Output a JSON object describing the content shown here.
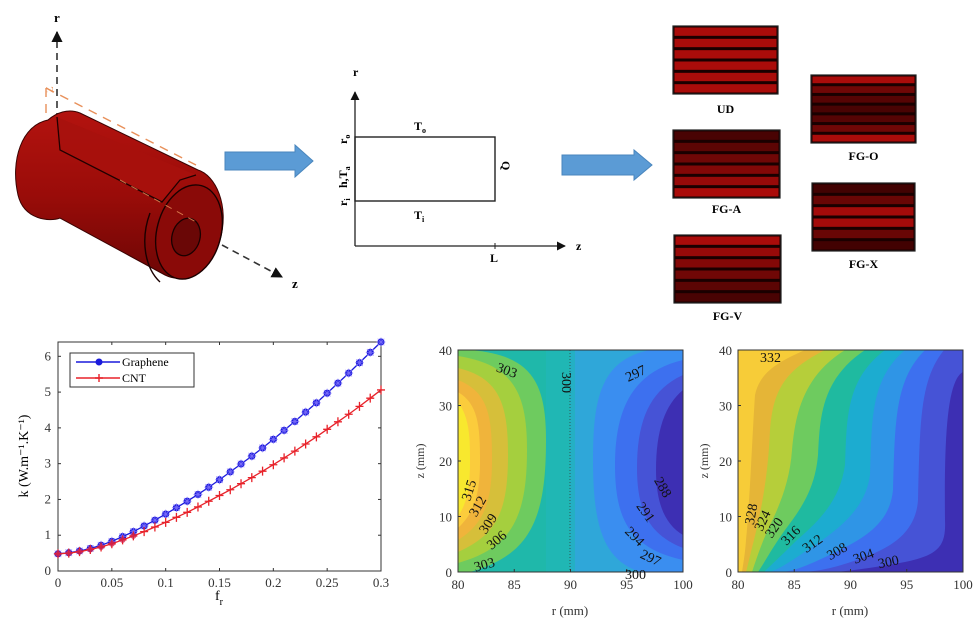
{
  "schematic_3d": {
    "axis_r_label": "r",
    "axis_z_label": "z",
    "section_label": "Z",
    "body_color": "#9b0d0a"
  },
  "schematic_2d": {
    "axis_r_label": "r",
    "axis_z_label": "z",
    "top_label": "T",
    "top_sub": "o",
    "bottom_label": "T",
    "bottom_sub": "i",
    "right_label": "Q",
    "left_outer": "r",
    "left_outer_sub": "o",
    "left_mid": "h,T",
    "left_mid_sub": "a",
    "left_inner": "r",
    "left_inner_sub": "i",
    "length_label": "L"
  },
  "arrows": {
    "color": "#5b9bd5"
  },
  "distributions": [
    {
      "label": "UD",
      "pattern": [
        1,
        1,
        1,
        1,
        1,
        1
      ]
    },
    {
      "label": "FG-O",
      "pattern": [
        1,
        0.55,
        0.35,
        0.25,
        0.35,
        0.55,
        1
      ]
    },
    {
      "label": "FG-A",
      "pattern": [
        0.25,
        0.4,
        0.55,
        0.7,
        0.85,
        1
      ]
    },
    {
      "label": "FG-X",
      "pattern": [
        0.2,
        0.5,
        0.95,
        0.95,
        0.5,
        0.2
      ]
    },
    {
      "label": "FG-V",
      "pattern": [
        1,
        0.85,
        0.7,
        0.55,
        0.4,
        0.25
      ]
    }
  ],
  "chart_data": [
    {
      "type": "line",
      "title": "",
      "xlabel": "f",
      "xlabel_sub": "r",
      "ylabel": "k (W.m⁻¹.K⁻¹)",
      "xlim": [
        0,
        0.3
      ],
      "ylim": [
        0,
        6.4
      ],
      "xticks": [
        "0",
        "0.05",
        "0.1",
        "0.15",
        "0.2",
        "0.25",
        "0.3"
      ],
      "yticks": [
        "0",
        "1",
        "2",
        "3",
        "4",
        "5",
        "6"
      ],
      "legend": "top-left",
      "x": [
        0,
        0.01,
        0.02,
        0.03,
        0.04,
        0.05,
        0.06,
        0.07,
        0.08,
        0.09,
        0.1,
        0.11,
        0.12,
        0.13,
        0.14,
        0.15,
        0.16,
        0.17,
        0.18,
        0.19,
        0.2,
        0.21,
        0.22,
        0.23,
        0.24,
        0.25,
        0.26,
        0.27,
        0.28,
        0.29,
        0.3
      ],
      "series": [
        {
          "name": "Graphene",
          "color": "#1a1adb",
          "marker": "circle-star",
          "values": [
            0.48,
            0.51,
            0.56,
            0.63,
            0.72,
            0.83,
            0.96,
            1.1,
            1.26,
            1.42,
            1.59,
            1.77,
            1.95,
            2.14,
            2.34,
            2.55,
            2.77,
            2.99,
            3.21,
            3.44,
            3.68,
            3.93,
            4.18,
            4.44,
            4.7,
            4.97,
            5.25,
            5.53,
            5.82,
            6.11,
            6.4
          ]
        },
        {
          "name": "CNT",
          "color": "#e8222a",
          "marker": "plus",
          "values": [
            0.48,
            0.5,
            0.54,
            0.6,
            0.67,
            0.76,
            0.87,
            0.98,
            1.1,
            1.23,
            1.36,
            1.5,
            1.64,
            1.79,
            1.95,
            2.11,
            2.27,
            2.44,
            2.61,
            2.79,
            2.97,
            3.16,
            3.35,
            3.55,
            3.75,
            3.96,
            4.17,
            4.38,
            4.6,
            4.83,
            5.06
          ]
        }
      ]
    },
    {
      "type": "heatmap",
      "subtype": "filled-contour",
      "xlabel": "r (mm)",
      "ylabel": "z (mm)",
      "xlim": [
        80,
        100
      ],
      "ylim": [
        0,
        40
      ],
      "xticks": [
        "80",
        "85",
        "90",
        "95",
        "100"
      ],
      "yticks": [
        "0",
        "10",
        "20",
        "30",
        "40"
      ],
      "contour_levels": [
        288,
        291,
        294,
        297,
        300,
        303,
        306,
        309,
        312,
        315
      ],
      "labels": [
        "303",
        "300",
        "297",
        "315",
        "312",
        "309",
        "306",
        "303",
        "288",
        "291",
        "294",
        "297",
        "300"
      ]
    },
    {
      "type": "heatmap",
      "subtype": "filled-contour",
      "xlabel": "r (mm)",
      "ylabel": "z (mm)",
      "xlim": [
        80,
        100
      ],
      "ylim": [
        0,
        40
      ],
      "xticks": [
        "80",
        "85",
        "90",
        "95",
        "100"
      ],
      "yticks": [
        "0",
        "10",
        "20",
        "30",
        "40"
      ],
      "contour_levels": [
        300,
        304,
        308,
        312,
        316,
        320,
        324,
        328,
        332
      ],
      "labels": [
        "332",
        "328",
        "324",
        "320",
        "316",
        "312",
        "308",
        "304",
        "300"
      ]
    }
  ]
}
